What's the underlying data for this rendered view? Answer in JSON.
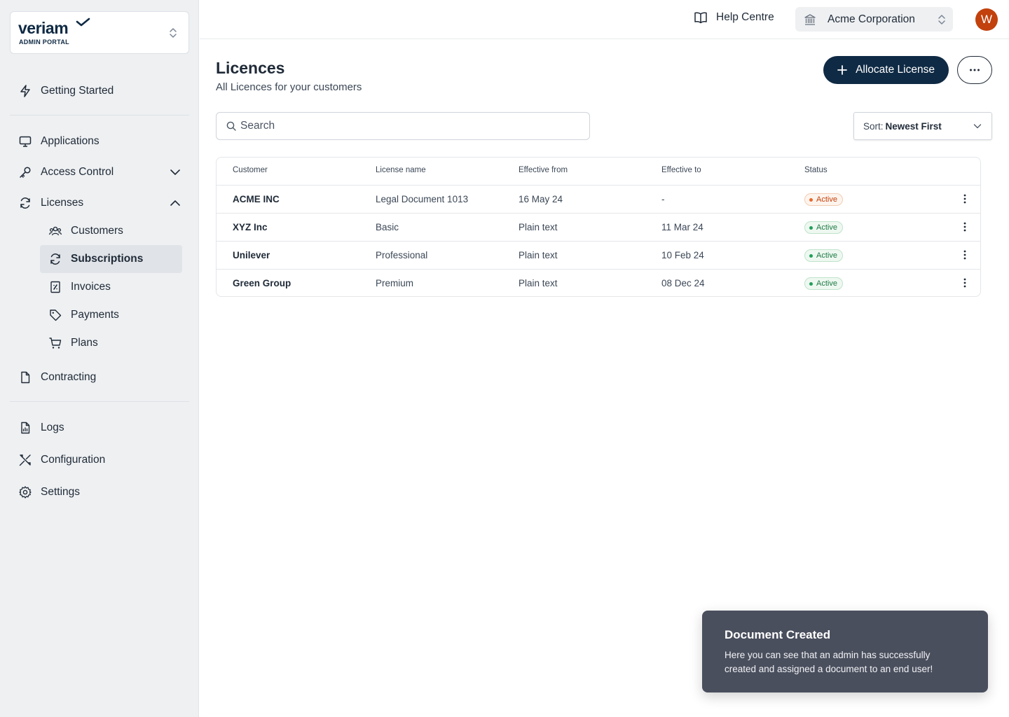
{
  "brand": {
    "name": "veriam",
    "subtitle": "ADMIN PORTAL"
  },
  "sidebar": {
    "getting_started": "Getting Started",
    "applications": "Applications",
    "access_control": "Access Control",
    "licenses": "Licenses",
    "licenses_children": [
      "Customers",
      "Subscriptions",
      "Invoices",
      "Payments",
      "Plans"
    ],
    "active_child": "Subscriptions",
    "contracting": "Contracting",
    "logs": "Logs",
    "configuration": "Configuration",
    "settings": "Settings"
  },
  "topbar": {
    "help": "Help Centre",
    "organization": "Acme Corporation",
    "avatar_initial": "W"
  },
  "header": {
    "title": "Licences",
    "subtitle": "All Licences for your customers",
    "allocate_label": "Allocate License"
  },
  "search": {
    "placeholder": "Search"
  },
  "sort": {
    "prefix": "Sort:",
    "value": "Newest First"
  },
  "table": {
    "columns": [
      "Customer",
      "License name",
      "Effective from",
      "Effective to",
      "Status"
    ],
    "rows": [
      {
        "customer": "ACME INC",
        "license": "Legal Document 1013",
        "from": "16 May 24",
        "to": "-",
        "status": "Active",
        "status_color": "orange"
      },
      {
        "customer": "XYZ Inc",
        "license": "Basic",
        "from": "Plain text",
        "to": "11 Mar 24",
        "status": "Active",
        "status_color": "green"
      },
      {
        "customer": "Unilever",
        "license": "Professional",
        "from": "Plain text",
        "to": "10 Feb 24",
        "status": "Active",
        "status_color": "green"
      },
      {
        "customer": "Green Group",
        "license": "Premium",
        "from": "Plain text",
        "to": "08 Dec 24",
        "status": "Active",
        "status_color": "green"
      }
    ]
  },
  "toast": {
    "title": "Document Created",
    "body": "Here you can see that an admin has successfully created and assigned a document to an end user!"
  },
  "colors": {
    "primary": "#0f2a44",
    "avatar": "#c2410c",
    "status_green": "#1e7a44",
    "status_orange": "#c2410c"
  }
}
